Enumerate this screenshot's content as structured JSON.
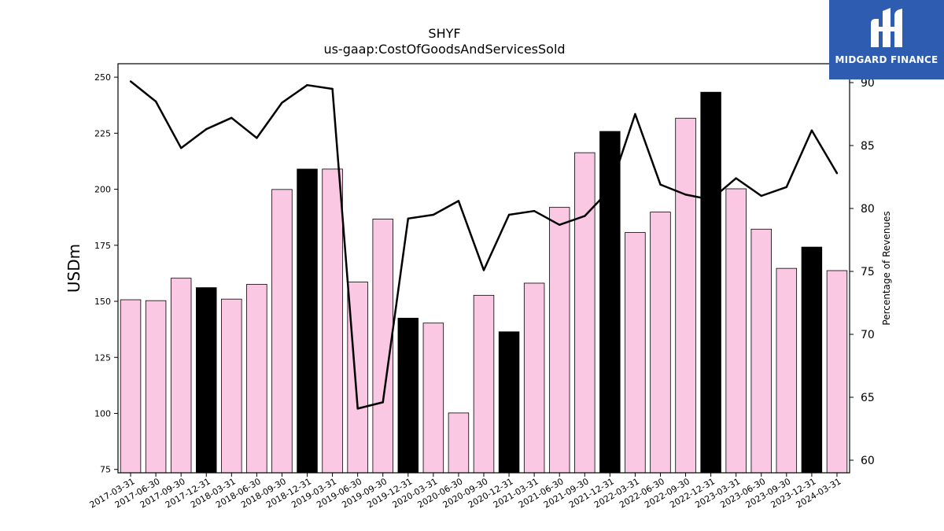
{
  "chart_data": {
    "type": "bar",
    "title": "SHYF",
    "subtitle": "us-gaap:CostOfGoodsAndServicesSold",
    "ylabel": "USDm",
    "y2label": "Percentage of Revenues",
    "ylim": [
      73.5,
      256
    ],
    "y2lim": [
      59,
      91.5
    ],
    "yticks": [
      75,
      100,
      125,
      150,
      175,
      200,
      225,
      250
    ],
    "y2ticks": [
      60,
      65,
      70,
      75,
      80,
      85,
      90
    ],
    "categories": [
      "2017-03-31",
      "2017-06-30",
      "2017-09-30",
      "2017-12-31",
      "2018-03-31",
      "2018-06-30",
      "2018-09-30",
      "2018-12-31",
      "2019-03-31",
      "2019-06-30",
      "2019-09-30",
      "2019-12-31",
      "2020-03-31",
      "2020-06-30",
      "2020-09-30",
      "2020-12-31",
      "2021-03-31",
      "2021-06-30",
      "2021-09-30",
      "2021-12-31",
      "2022-03-31",
      "2022-06-30",
      "2022-09-30",
      "2022-12-31",
      "2023-03-31",
      "2023-06-30",
      "2023-09-30",
      "2023-12-31",
      "2024-03-31"
    ],
    "series": [
      {
        "kind": "bar",
        "values": [
          150.7,
          150.3,
          160.3,
          156.1,
          151.0,
          157.6,
          199.9,
          209.0,
          209.0,
          158.6,
          186.7,
          142.5,
          140.3,
          100.2,
          152.7,
          136.4,
          158.1,
          191.9,
          216.3,
          225.8,
          180.7,
          189.8,
          231.7,
          243.3,
          200.2,
          182.2,
          164.7,
          174.2,
          163.7
        ],
        "highlight": [
          false,
          false,
          false,
          true,
          false,
          false,
          false,
          true,
          false,
          false,
          false,
          true,
          false,
          false,
          false,
          true,
          false,
          false,
          false,
          true,
          false,
          false,
          false,
          true,
          false,
          false,
          false,
          true,
          false
        ],
        "color": "#fbc8e3",
        "highlight_color": "#000000"
      },
      {
        "kind": "line",
        "axis": "right",
        "values": [
          90.1,
          88.5,
          84.8,
          86.3,
          87.2,
          85.6,
          88.4,
          89.8,
          89.5,
          64.1,
          64.6,
          79.2,
          79.5,
          80.6,
          75.1,
          79.5,
          79.8,
          78.7,
          79.4,
          81.5,
          87.5,
          81.9,
          81.1,
          80.7,
          82.4,
          81.0,
          81.7,
          86.2,
          82.8
        ],
        "color": "#000000"
      }
    ],
    "grid": false
  },
  "logo": {
    "text": "MIDGARD FINANCE",
    "color": "#2d5cb0"
  }
}
